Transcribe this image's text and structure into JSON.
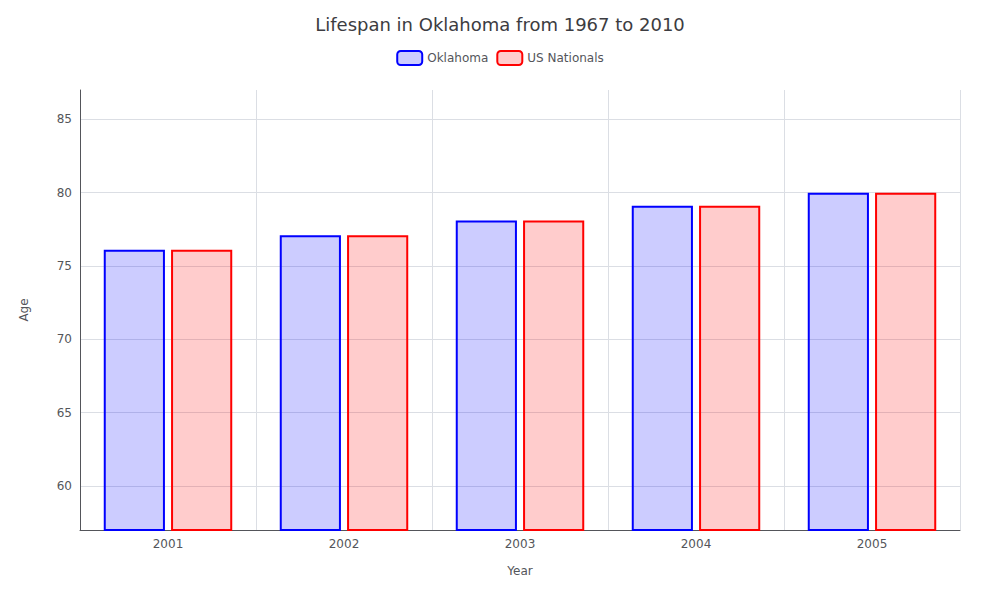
{
  "chart_data": {
    "type": "bar",
    "title": "Lifespan in Oklahoma from 1967 to 2010",
    "xlabel": "Year",
    "ylabel": "Age",
    "categories": [
      "2001",
      "2002",
      "2003",
      "2004",
      "2005"
    ],
    "series": [
      {
        "name": "Oklahoma",
        "color": "#0000ff",
        "values": [
          76.1,
          77.1,
          78.1,
          79.1,
          80.0
        ]
      },
      {
        "name": "US Nationals",
        "color": "#ff0000",
        "values": [
          76.1,
          77.1,
          78.1,
          79.1,
          80.0
        ]
      }
    ],
    "ylim": [
      57,
      87
    ],
    "yticks": [
      60,
      65,
      70,
      75,
      80,
      85
    ],
    "grid": true,
    "legend": "top"
  }
}
